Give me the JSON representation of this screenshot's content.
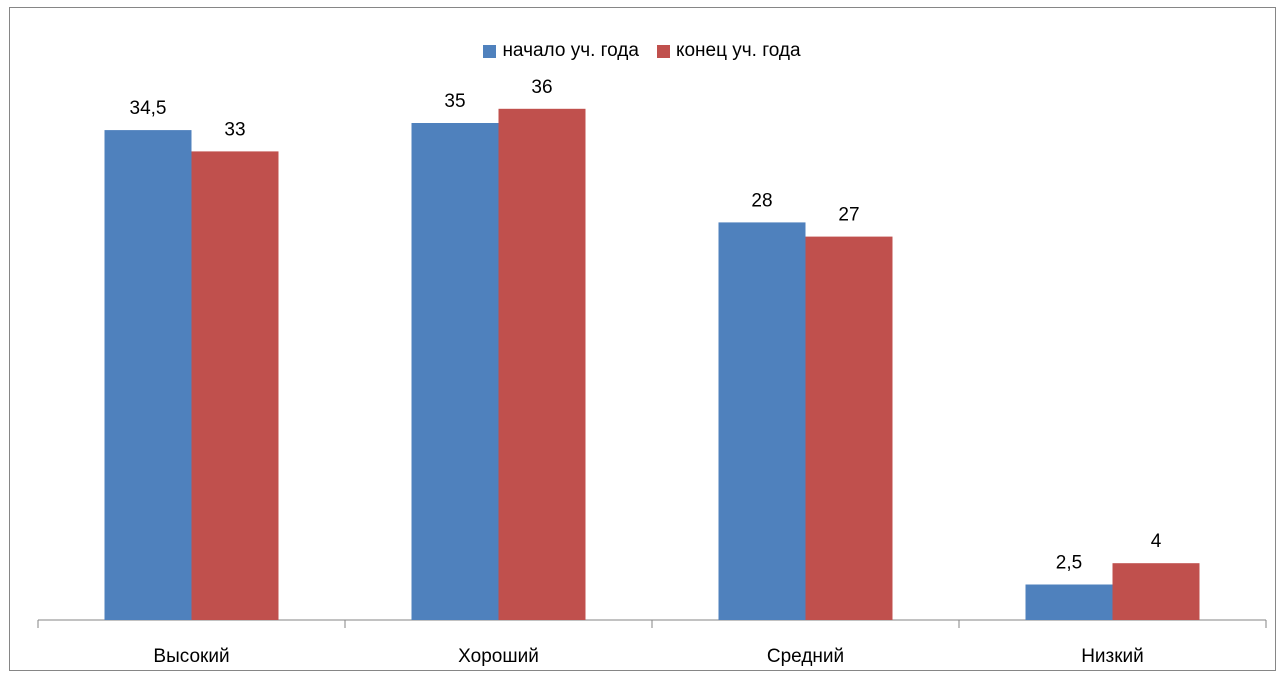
{
  "chart_data": {
    "type": "bar",
    "categories": [
      "Высокий",
      "Хороший",
      "Средний",
      "Низкий"
    ],
    "series": [
      {
        "name": "начало уч. года",
        "values": [
          34.5,
          35,
          28,
          2.5
        ],
        "labels": [
          "34,5",
          "35",
          "28",
          "2,5"
        ],
        "color": "#4F81BD"
      },
      {
        "name": "конец уч. года",
        "values": [
          33,
          36,
          27,
          4
        ],
        "labels": [
          "33",
          "36",
          "27",
          "4"
        ],
        "color": "#C0504D"
      }
    ],
    "ylim": [
      0,
      40
    ],
    "grid": false,
    "legend_position": "top"
  }
}
